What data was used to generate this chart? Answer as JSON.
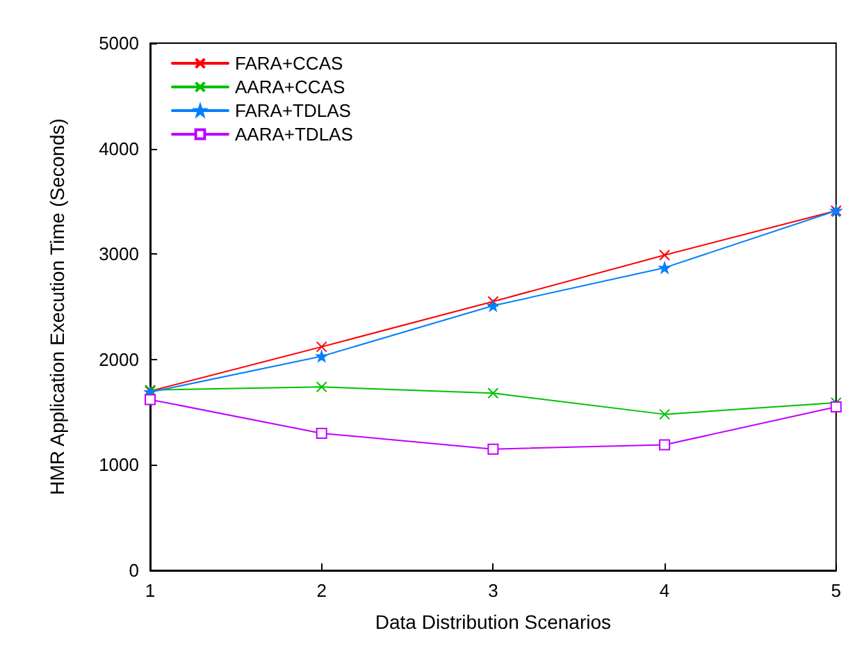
{
  "chart_data": {
    "type": "line",
    "xlabel": "Data Distribution Scenarios",
    "ylabel": "HMR Application Execution Time (Seconds)",
    "x": [
      1,
      2,
      3,
      4,
      5
    ],
    "xlim": [
      1,
      5
    ],
    "xticks": [
      1,
      2,
      3,
      4,
      5
    ],
    "ylim": [
      0,
      5000
    ],
    "yticks": [
      0,
      1000,
      2000,
      3000,
      4000,
      5000
    ],
    "grid": false,
    "legend": "top left",
    "line_style": "solid",
    "series": [
      {
        "name": "FARA+CCAS",
        "color": "#ff0000",
        "marker": "cross",
        "values": [
          1700,
          2120,
          2550,
          2990,
          3410
        ]
      },
      {
        "name": "AARA+CCAS",
        "color": "#00c000",
        "marker": "cross",
        "values": [
          1710,
          1740,
          1680,
          1480,
          1590
        ]
      },
      {
        "name": "FARA+TDLAS",
        "color": "#0080ff",
        "marker": "star",
        "values": [
          1690,
          2030,
          2510,
          2870,
          3410
        ]
      },
      {
        "name": "AARA+TDLAS",
        "color": "#c000ff",
        "marker": "square",
        "values": [
          1620,
          1300,
          1150,
          1190,
          1550
        ]
      }
    ]
  }
}
